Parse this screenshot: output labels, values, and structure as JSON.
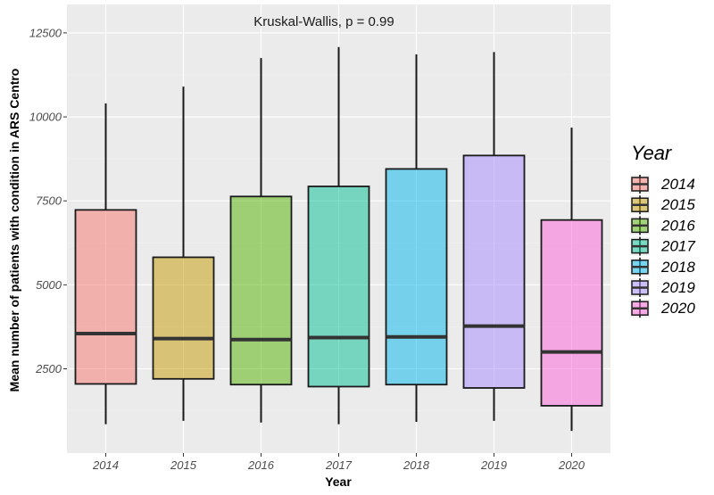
{
  "chart_data": {
    "type": "boxplot",
    "title": "",
    "annotation": "Kruskal-Wallis, p = 0.99",
    "xlabel": "Year",
    "ylabel": "Mean number of patients with condition in ARS Centro",
    "ylim": [
      500,
      13500
    ],
    "yticks": [
      2500,
      5000,
      7500,
      10000,
      12500
    ],
    "ytick_labels": [
      "2500",
      "5000",
      "7500",
      "10000",
      "12500"
    ],
    "grid": true,
    "legend": {
      "title": "Year",
      "placement": "right"
    },
    "categories": [
      "2014",
      "2015",
      "2016",
      "2017",
      "2018",
      "2019",
      "2020"
    ],
    "boxes": [
      {
        "name": "2014",
        "min": 850,
        "q1": 2050,
        "median": 3550,
        "q3": 7230,
        "max": 10400,
        "color": "#F8766D"
      },
      {
        "name": "2015",
        "min": 950,
        "q1": 2200,
        "median": 3400,
        "q3": 5820,
        "max": 10900,
        "color": "#C49A00"
      },
      {
        "name": "2016",
        "min": 900,
        "q1": 2030,
        "median": 3370,
        "q3": 7630,
        "max": 11750,
        "color": "#53B400"
      },
      {
        "name": "2017",
        "min": 850,
        "q1": 1970,
        "median": 3430,
        "q3": 7930,
        "max": 12080,
        "color": "#00C094"
      },
      {
        "name": "2018",
        "min": 920,
        "q1": 2030,
        "median": 3450,
        "q3": 8450,
        "max": 11860,
        "color": "#00B6EB"
      },
      {
        "name": "2019",
        "min": 950,
        "q1": 1930,
        "median": 3770,
        "q3": 8850,
        "max": 11930,
        "color": "#A58AFF"
      },
      {
        "name": "2020",
        "min": 650,
        "q1": 1400,
        "median": 3000,
        "q3": 6930,
        "max": 9680,
        "color": "#FB61D7"
      }
    ]
  }
}
